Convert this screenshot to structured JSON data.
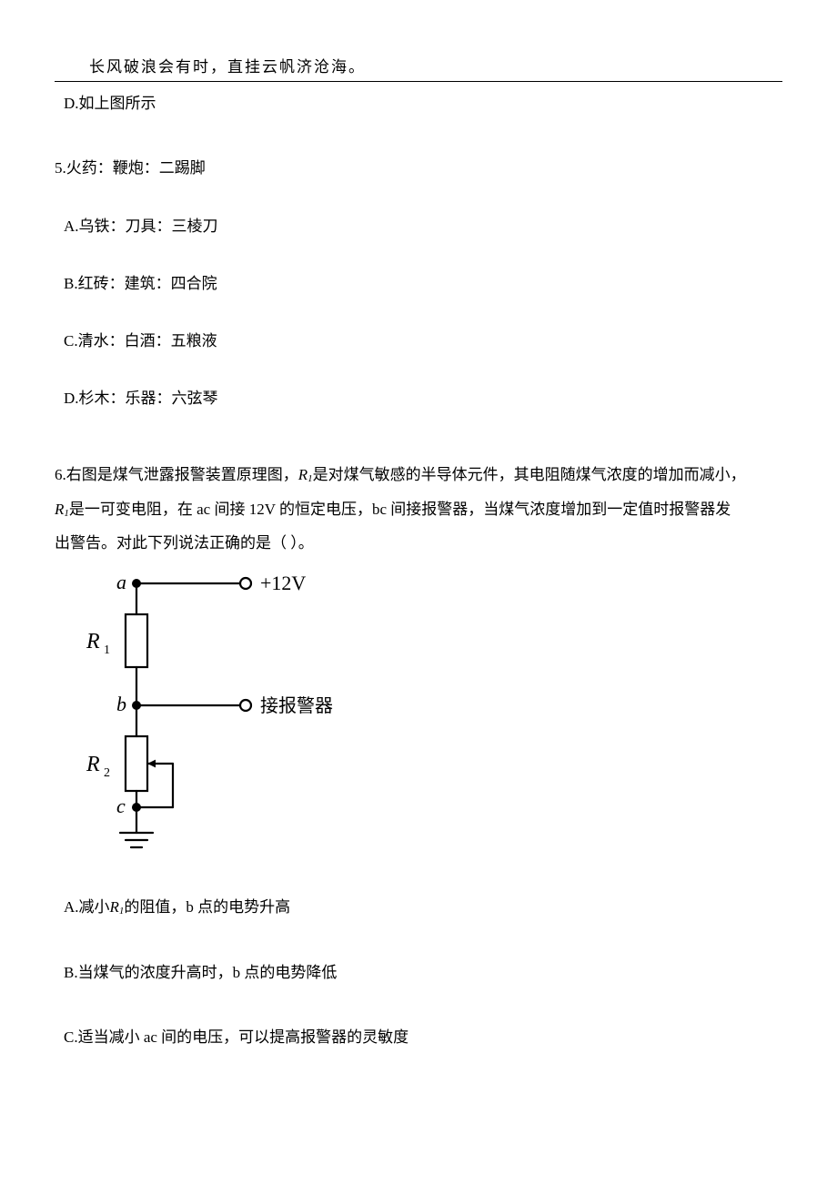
{
  "header": {
    "quote": "长风破浪会有时，直挂云帆济沧海。"
  },
  "q4": {
    "optD": "D.如上图所示"
  },
  "q5": {
    "stem": "5.火药：鞭炮：二踢脚",
    "optA": "A.乌铁：刀具：三棱刀",
    "optB": "B.红砖：建筑：四合院",
    "optC": "C.清水：白酒：五粮液",
    "optD": "D.杉木：乐器：六弦琴"
  },
  "q6": {
    "stem_p1_a": "6.右图是煤气泄露报警装置原理图，",
    "stem_p1_b": "是对煤气敏感的半导体元件，其电阻随煤气浓度的增加而减小，",
    "stem_p2_a": "是一可变电阻，在 ac 间接 12V 的恒定电压，bc 间接报警器，当煤气浓度增加到一定值时报警器发",
    "stem_p3": "出警告。对此下列说法正确的是（    ）。",
    "R_plain": "R",
    "sub1": "1",
    "optA_a": "A.减小",
    "optA_b": "的阻值，b 点的电势升高",
    "optB": "B.当煤气的浓度升高时，b 点的电势降低",
    "optC": "C.适当减小 ac 间的电压，可以提高报警器的灵敏度"
  },
  "diagram": {
    "labels": {
      "a": "a",
      "b": "b",
      "c": "c",
      "R1": "R",
      "R1_sub": "1",
      "R2": "R",
      "R2_sub": "2",
      "v12": "+12V",
      "alarm": "接报警器"
    },
    "colors": {
      "stroke": "#000000",
      "fill": "#000000",
      "bg": "#ffffff"
    },
    "stroke_width": 2.2,
    "font_size_label": 22,
    "font_size_sub": 14,
    "font_size_cn": 20
  }
}
